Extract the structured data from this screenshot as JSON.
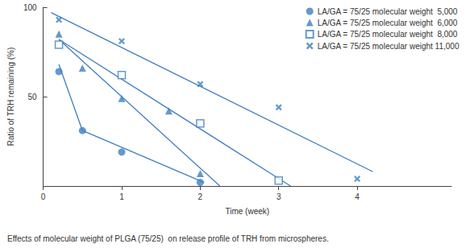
{
  "chart_data": {
    "type": "scatter",
    "title": "Effects of molecular weight of PLGA (75/25)  on release profile of TRH from microspheres.",
    "x_label": "Time (week)",
    "y_label": "Ratio of TRH remaining (%)",
    "xlim": [
      0,
      5.2
    ],
    "xticks": [
      0,
      1,
      2,
      3,
      4
    ],
    "ylim": [
      0,
      100
    ],
    "yticks": [
      50,
      100
    ],
    "grid": false,
    "legend": "upper right",
    "series": [
      {
        "name": "LA/GA = 75/25 molecular weight  5,000",
        "color": "#3f7fbf",
        "marker": "circle",
        "x": [
          0.2,
          0.5,
          1,
          2
        ],
        "values": [
          64,
          31,
          19,
          2
        ],
        "trend_x": [
          0.2,
          0.5,
          2.05
        ],
        "trend_values": [
          68,
          31,
          2
        ]
      },
      {
        "name": "LA/GA = 75/25 molecular weight  6,000",
        "color": "#3f7fbf",
        "marker": "triangle",
        "x": [
          0.2,
          0.5,
          1,
          1.6,
          2
        ],
        "values": [
          85,
          66,
          49,
          42,
          7
        ],
        "trend_x": [
          0.2,
          2.25
        ],
        "trend_values": [
          82,
          0
        ]
      },
      {
        "name": "LA/GA = 75/25 molecular weight  8,000",
        "color": "#3f7fbf",
        "marker": "square-open",
        "x": [
          0.2,
          1,
          2,
          3
        ],
        "values": [
          79,
          62,
          35,
          3
        ],
        "trend_x": [
          0.2,
          3.15
        ],
        "trend_values": [
          82,
          0
        ]
      },
      {
        "name": "LA/GA = 75/25 molecular weight 11,000",
        "color": "#3f7fbf",
        "marker": "x",
        "x": [
          0.2,
          1,
          2,
          3,
          4
        ],
        "values": [
          93,
          81,
          57,
          44,
          4
        ],
        "trend_x": [
          0.1,
          4.2
        ],
        "trend_values": [
          97,
          8
        ]
      }
    ]
  }
}
